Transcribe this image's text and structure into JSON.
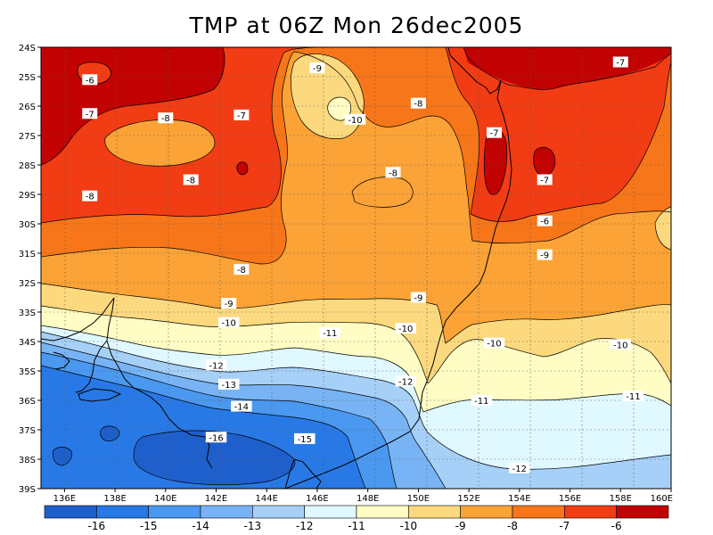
{
  "title": "TMP at 06Z Mon 26dec2005",
  "map": {
    "lat_labels": [
      "24S",
      "25S",
      "26S",
      "27S",
      "28S",
      "29S",
      "30S",
      "31S",
      "32S",
      "33S",
      "34S",
      "35S",
      "36S",
      "37S",
      "38S",
      "39S"
    ],
    "lon_labels": [
      "136E",
      "138E",
      "140E",
      "142E",
      "144E",
      "146E",
      "148E",
      "150E",
      "152E",
      "154E",
      "156E",
      "158E",
      "160E"
    ],
    "contour_labels": [
      {
        "text": "-6",
        "lon": 137.0,
        "lat": 25.1
      },
      {
        "text": "-7",
        "lon": 137.0,
        "lat": 26.25
      },
      {
        "text": "-8",
        "lon": 140.0,
        "lat": 26.4
      },
      {
        "text": "-7",
        "lon": 143.0,
        "lat": 26.3
      },
      {
        "text": "-9",
        "lon": 146.0,
        "lat": 24.7
      },
      {
        "text": "-10",
        "lon": 147.5,
        "lat": 26.45
      },
      {
        "text": "-8",
        "lon": 150.0,
        "lat": 25.9
      },
      {
        "text": "-7",
        "lon": 153.0,
        "lat": 26.9
      },
      {
        "text": "-7",
        "lon": 158.0,
        "lat": 24.5
      },
      {
        "text": "-8",
        "lon": 141.0,
        "lat": 28.5
      },
      {
        "text": "-8",
        "lon": 149.0,
        "lat": 28.25
      },
      {
        "text": "-7",
        "lon": 155.0,
        "lat": 28.5
      },
      {
        "text": "-8",
        "lon": 137.0,
        "lat": 29.05
      },
      {
        "text": "-6",
        "lon": 155.0,
        "lat": 29.9
      },
      {
        "text": "-9",
        "lon": 155.0,
        "lat": 31.05
      },
      {
        "text": "-8",
        "lon": 143.0,
        "lat": 31.55
      },
      {
        "text": "-9",
        "lon": 142.5,
        "lat": 32.7
      },
      {
        "text": "-9",
        "lon": 150.0,
        "lat": 32.5
      },
      {
        "text": "-10",
        "lon": 142.5,
        "lat": 33.35
      },
      {
        "text": "-11",
        "lon": 146.5,
        "lat": 33.7
      },
      {
        "text": "-10",
        "lon": 149.5,
        "lat": 33.55
      },
      {
        "text": "-10",
        "lon": 153.0,
        "lat": 34.05
      },
      {
        "text": "-10",
        "lon": 158.0,
        "lat": 34.1
      },
      {
        "text": "-12",
        "lon": 142.0,
        "lat": 34.8
      },
      {
        "text": "-12",
        "lon": 149.5,
        "lat": 35.35
      },
      {
        "text": "-13",
        "lon": 142.5,
        "lat": 35.45
      },
      {
        "text": "-11",
        "lon": 152.5,
        "lat": 36.0
      },
      {
        "text": "-11",
        "lon": 158.5,
        "lat": 35.85
      },
      {
        "text": "-14",
        "lon": 143.0,
        "lat": 36.2
      },
      {
        "text": "-16",
        "lon": 142.0,
        "lat": 37.25
      },
      {
        "text": "-15",
        "lon": 145.5,
        "lat": 37.3
      },
      {
        "text": "-12",
        "lon": 154.0,
        "lat": 38.3
      }
    ]
  },
  "colorbar": {
    "labels": [
      "-16",
      "-15",
      "-14",
      "-13",
      "-12",
      "-11",
      "-10",
      "-9",
      "-8",
      "-7",
      "-6"
    ],
    "colors": [
      "#1e5fcc",
      "#2879e6",
      "#4a98f0",
      "#78b4f5",
      "#a6d0f8",
      "#e0f8ff",
      "#fffcc4",
      "#fcd97e",
      "#fba336",
      "#f7761a",
      "#f23c14",
      "#c20202"
    ]
  },
  "colors": {
    "t_m7_m6": "#f23c14",
    "t_ge_m6": "#c20202",
    "t_m8_m7": "#f7761a",
    "t_m9_m8": "#fba336",
    "t_m10_m9": "#fcd97e",
    "t_m11_m10": "#fffcc4",
    "t_m12_m11": "#e0f8ff",
    "t_m13_m12": "#a6d0f8",
    "t_m14_m13": "#78b4f5",
    "t_m15_m14": "#4a98f0",
    "t_m16_m15": "#2879e6",
    "t_lt_m16": "#1e5fcc"
  }
}
